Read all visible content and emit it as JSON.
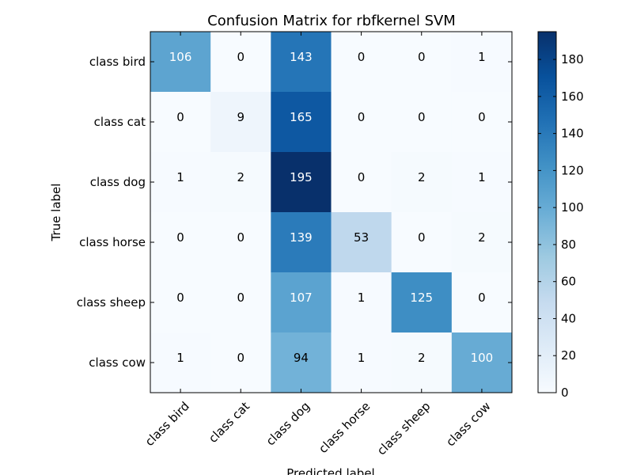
{
  "chart_data": {
    "type": "heatmap",
    "title": "Confusion Matrix for rbfkernel SVM",
    "xlabel": "Predicted label",
    "ylabel": "True label",
    "x_categories": [
      "class bird",
      "class cat",
      "class dog",
      "class horse",
      "class sheep",
      "class cow"
    ],
    "y_categories": [
      "class bird",
      "class cat",
      "class dog",
      "class horse",
      "class sheep",
      "class cow"
    ],
    "values": [
      [
        106,
        0,
        143,
        0,
        0,
        1
      ],
      [
        0,
        9,
        165,
        0,
        0,
        0
      ],
      [
        1,
        2,
        195,
        0,
        2,
        1
      ],
      [
        0,
        0,
        139,
        53,
        0,
        2
      ],
      [
        0,
        0,
        107,
        1,
        125,
        0
      ],
      [
        1,
        0,
        94,
        1,
        2,
        100
      ]
    ],
    "colormap": "Blues",
    "color_low": "#f7fbff",
    "color_high": "#08306b",
    "colorbar": {
      "min": 0,
      "max": 195,
      "ticks": [
        0,
        20,
        40,
        60,
        80,
        100,
        120,
        140,
        160,
        180
      ]
    }
  }
}
